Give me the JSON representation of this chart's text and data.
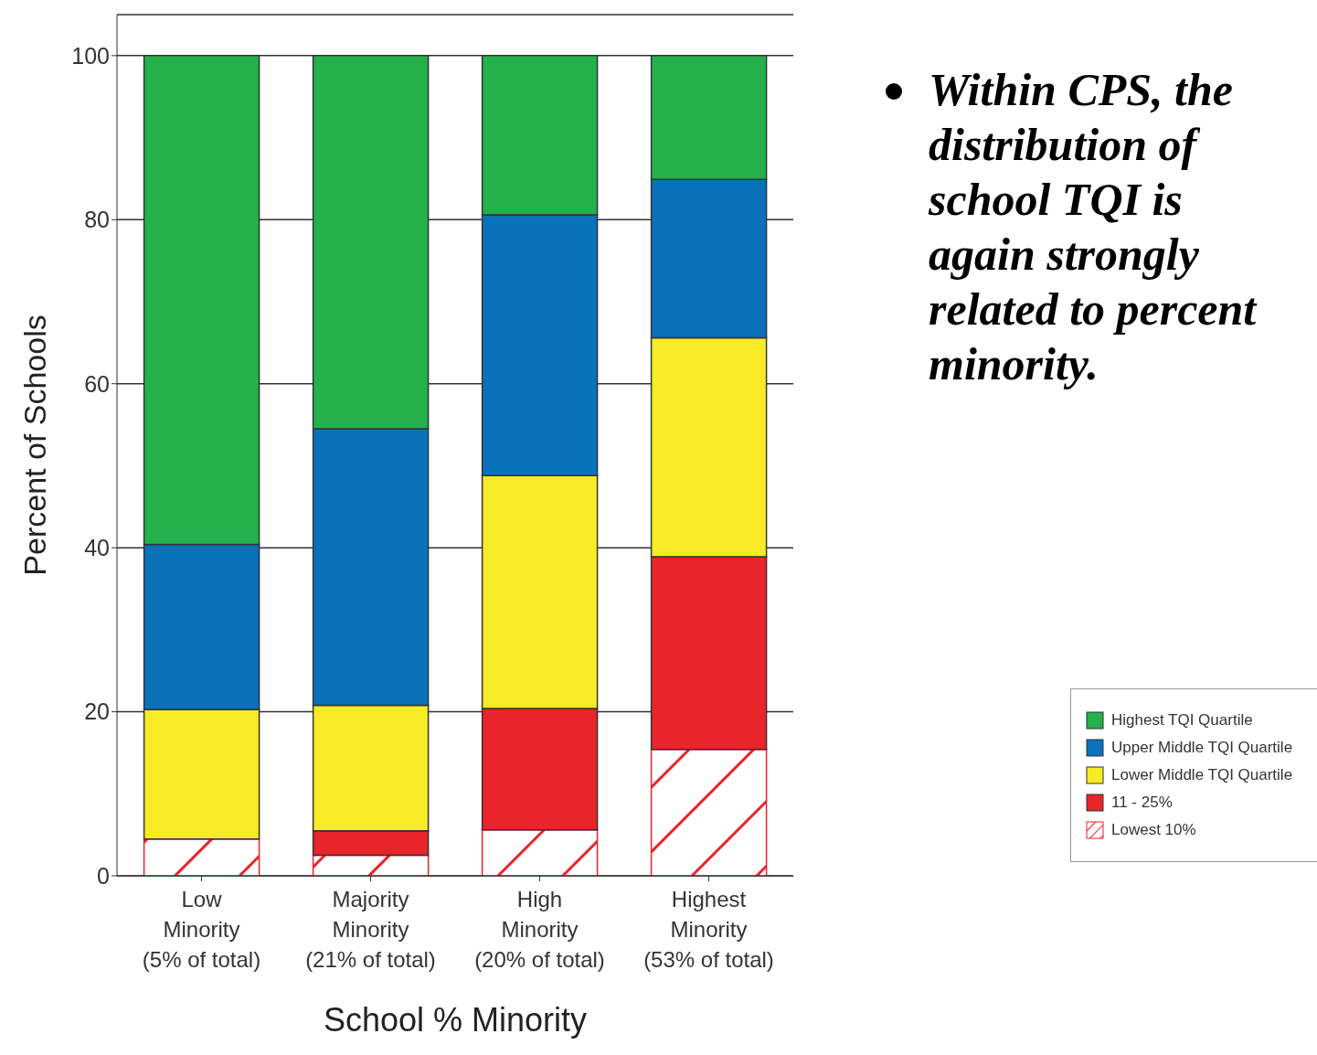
{
  "chart_data": {
    "type": "bar",
    "stacked": true,
    "categories": [
      "Low\nMinority\n(5% of total)",
      "Majority\nMinority\n(21% of total)",
      "High\nMinority\n(20% of total)",
      "Highest\nMinority\n(53% of total)"
    ],
    "series": [
      {
        "name": "Lowest 10%",
        "color": "#e9242a",
        "values": [
          4.5,
          2.5,
          5.6,
          15.4
        ]
      },
      {
        "name": "11 - 25%",
        "color": "#e9242a",
        "values": [
          0,
          3.0,
          14.8,
          23.5
        ]
      },
      {
        "name": "Lower Middle TQI Quartile",
        "color": "#f6eb24",
        "values": [
          15.8,
          15.3,
          28.4,
          26.7
        ]
      },
      {
        "name": "Upper Middle TQI Quartile",
        "color": "#0a72bb",
        "values": [
          20.1,
          33.7,
          31.8,
          19.3
        ]
      },
      {
        "name": "Highest TQI Quartile",
        "color": "#24b04b",
        "values": [
          59.6,
          45.5,
          19.4,
          15.1
        ]
      }
    ],
    "ylim": [
      0,
      105
    ],
    "yticks": [
      0,
      20,
      40,
      60,
      80,
      100
    ],
    "grid": "y",
    "legend": "right",
    "xlabel": "School % Minority",
    "ylabel": "Percent of Schools",
    "annotations": [
      "Within CPS, the distribution of school TQI is again strongly related to percent minority."
    ]
  }
}
